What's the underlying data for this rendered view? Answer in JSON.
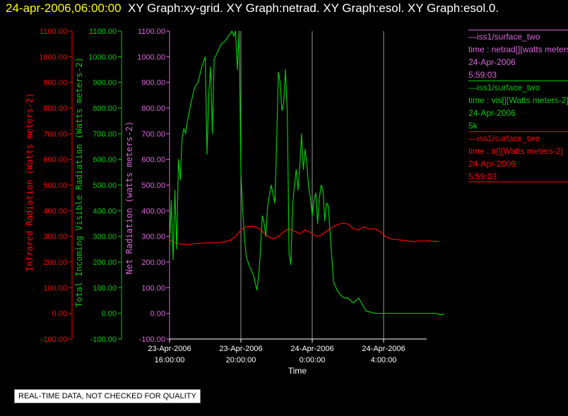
{
  "header": {
    "timestamp": "24-apr-2006,06:00:00",
    "graphs": "XY Graph:xy-grid.  XY Graph:netrad.  XY Graph:esol.  XY Graph:esol.0."
  },
  "legend": [
    {
      "station": "—iss1/surface_two",
      "field": "time : netrad[][watts meters-2]",
      "date": "24-Apr-2006",
      "info": "5:59:03",
      "color": "#dd66dd"
    },
    {
      "station": "—iss1/surface_two",
      "field": "time : vis[][Watts meters-2]",
      "date": "24-Apr-2006",
      "info": "5k",
      "color": "#00cc00"
    },
    {
      "station": "—iss1/surface_two",
      "field": "time : ir[][Watts meters-2]",
      "date": "24-Apr-2006",
      "info": "5:59:03",
      "color": "#ff0000"
    }
  ],
  "notice": "REAL-TIME DATA, NOT CHECKED FOR QUALITY",
  "chart_data": {
    "type": "line",
    "xlabel": "Time",
    "x_ticks": [
      {
        "t": 16,
        "date": "23-Apr-2006",
        "time": "16:00:00"
      },
      {
        "t": 20,
        "date": "23-Apr-2006",
        "time": "20:00:00"
      },
      {
        "t": 24,
        "date": "24-Apr-2006",
        "time": "0:00:00"
      },
      {
        "t": 28,
        "date": "24-Apr-2006",
        "time": "4:00:00"
      }
    ],
    "xlim": [
      16,
      31.5
    ],
    "ylim": [
      -100,
      1100
    ],
    "y_ticks": [
      "-100.00",
      "0.00",
      "100.00",
      "200.00",
      "300.00",
      "400.00",
      "500.00",
      "600.00",
      "700.00",
      "800.00",
      "900.00",
      "1000.00",
      "1100.00"
    ],
    "grid_x": [
      20,
      24,
      28
    ],
    "axes": [
      {
        "label": "Infrared Radiation (Watts meters-2)",
        "color": "#ff0000"
      },
      {
        "label": "Total Incoming Visible Radiation (Watts meters-2)",
        "color": "#00cc00"
      },
      {
        "label": "Net Radiation (watts meters-2)",
        "color": "#dd66dd"
      }
    ],
    "series": [
      {
        "name": "ir",
        "color": "#ff0000",
        "x": [
          16.0,
          16.3,
          16.6,
          17.0,
          17.5,
          18.0,
          18.5,
          19.0,
          19.4,
          19.7,
          20.0,
          20.3,
          20.6,
          20.9,
          21.2,
          21.5,
          21.8,
          22.1,
          22.4,
          22.7,
          23.0,
          23.3,
          23.6,
          23.9,
          24.2,
          24.5,
          24.8,
          25.1,
          25.4,
          25.7,
          26.0,
          26.3,
          26.6,
          26.9,
          27.2,
          27.5,
          27.8,
          28.1,
          28.4,
          28.7,
          29.0,
          29.3,
          29.6,
          29.9,
          30.2,
          30.5,
          30.8,
          31.1
        ],
        "y": [
          285,
          275,
          270,
          268,
          272,
          275,
          275,
          278,
          285,
          300,
          325,
          338,
          340,
          335,
          320,
          300,
          290,
          300,
          318,
          330,
          320,
          310,
          325,
          315,
          300,
          305,
          320,
          335,
          345,
          352,
          348,
          330,
          325,
          338,
          328,
          330,
          318,
          300,
          290,
          288,
          285,
          283,
          280,
          282,
          282,
          283,
          280,
          280
        ]
      },
      {
        "name": "vis",
        "color": "#00cc00",
        "x": [
          16.0,
          16.1,
          16.2,
          16.3,
          16.4,
          16.5,
          16.6,
          16.7,
          16.8,
          16.9,
          17.0,
          17.2,
          17.4,
          17.6,
          17.8,
          18.0,
          18.1,
          18.2,
          18.3,
          18.4,
          18.5,
          18.7,
          18.9,
          19.1,
          19.3,
          19.5,
          19.6,
          19.7,
          19.8,
          19.9,
          20.0,
          20.1,
          20.2,
          20.3,
          20.5,
          20.7,
          20.8,
          20.9,
          21.0,
          21.1,
          21.2,
          21.3,
          21.4,
          21.5,
          21.7,
          21.9,
          22.0,
          22.1,
          22.2,
          22.3,
          22.4,
          22.5,
          22.6,
          22.7,
          22.8,
          22.9,
          23.0,
          23.1,
          23.2,
          23.3,
          23.4,
          23.5,
          23.6,
          23.7,
          23.8,
          23.9,
          24.0,
          24.1,
          24.2,
          24.3,
          24.4,
          24.5,
          24.6,
          24.7,
          24.8,
          24.9,
          25.0,
          25.2,
          25.4,
          25.6,
          25.8,
          26.0,
          26.3,
          26.6,
          27.0,
          27.5,
          28.0,
          28.5,
          29.0,
          29.5,
          30.0,
          30.5,
          31.0,
          31.1,
          31.2,
          31.3,
          31.4
        ],
        "y": [
          260,
          440,
          210,
          480,
          250,
          600,
          520,
          680,
          720,
          700,
          750,
          820,
          880,
          900,
          960,
          1000,
          620,
          850,
          960,
          700,
          990,
          1020,
          1050,
          1060,
          1080,
          1100,
          1080,
          1100,
          950,
          1100,
          550,
          400,
          300,
          220,
          180,
          150,
          120,
          90,
          150,
          250,
          380,
          350,
          300,
          420,
          500,
          430,
          650,
          940,
          900,
          790,
          820,
          950,
          780,
          230,
          190,
          420,
          500,
          560,
          480,
          570,
          700,
          560,
          640,
          580,
          490,
          450,
          380,
          440,
          470,
          350,
          450,
          500,
          480,
          360,
          430,
          420,
          310,
          120,
          90,
          70,
          60,
          60,
          40,
          60,
          10,
          0,
          0,
          0,
          0,
          0,
          0,
          0,
          0,
          -5,
          -5,
          -5,
          0
        ]
      }
    ]
  }
}
